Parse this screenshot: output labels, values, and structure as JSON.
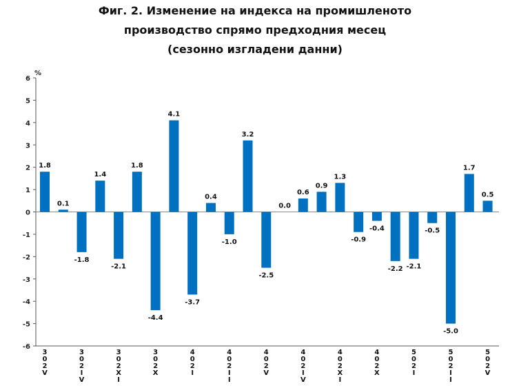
{
  "chart_data": {
    "type": "bar",
    "title_lines": [
      "Фиг. 2. Изменение на индекса на промишленото",
      "производство спрямо предходния месец",
      "(сезонно изгладени данни)"
    ],
    "ylabel": "%",
    "ylim": [
      -6,
      6
    ],
    "yticks": [
      "6",
      "5",
      "4",
      "3",
      "2",
      "1",
      "0",
      "-1",
      "-2",
      "-3",
      "-4",
      "-5",
      "-6"
    ],
    "bar_color": "#0070C0",
    "values": [
      1.8,
      0.1,
      -1.8,
      1.4,
      -2.1,
      1.8,
      -4.4,
      4.1,
      -3.7,
      0.4,
      -1.0,
      3.2,
      -2.5,
      0.0,
      0.6,
      0.9,
      1.3,
      -0.9,
      -0.4,
      -2.2,
      -2.1,
      -0.5,
      -5.0,
      1.7,
      0.5
    ],
    "value_labels": [
      "1.8",
      "0.1",
      "-1.8",
      "1.4",
      "-2.1",
      "1.8",
      "-4.4",
      "4.1",
      "-3.7",
      "0.4",
      "-1.0",
      "3.2",
      "-2.5",
      "0.0",
      "0.6",
      "0.9",
      "1.3",
      "-0.9",
      "-0.4",
      "-2.2",
      "-2.1",
      "-0.5",
      "-5.0",
      "1.7",
      "0.5"
    ],
    "category_labels": [
      {
        "index": 0,
        "text": "302V"
      },
      {
        "index": 2,
        "text": "302IV"
      },
      {
        "index": 4,
        "text": "302XI"
      },
      {
        "index": 6,
        "text": "302X"
      },
      {
        "index": 8,
        "text": "402I"
      },
      {
        "index": 10,
        "text": "402II"
      },
      {
        "index": 12,
        "text": "402V"
      },
      {
        "index": 14,
        "text": "402IV"
      },
      {
        "index": 16,
        "text": "402XI"
      },
      {
        "index": 18,
        "text": "402X"
      },
      {
        "index": 20,
        "text": "502I"
      },
      {
        "index": 22,
        "text": "502II"
      },
      {
        "index": 24,
        "text": "502V"
      }
    ]
  }
}
